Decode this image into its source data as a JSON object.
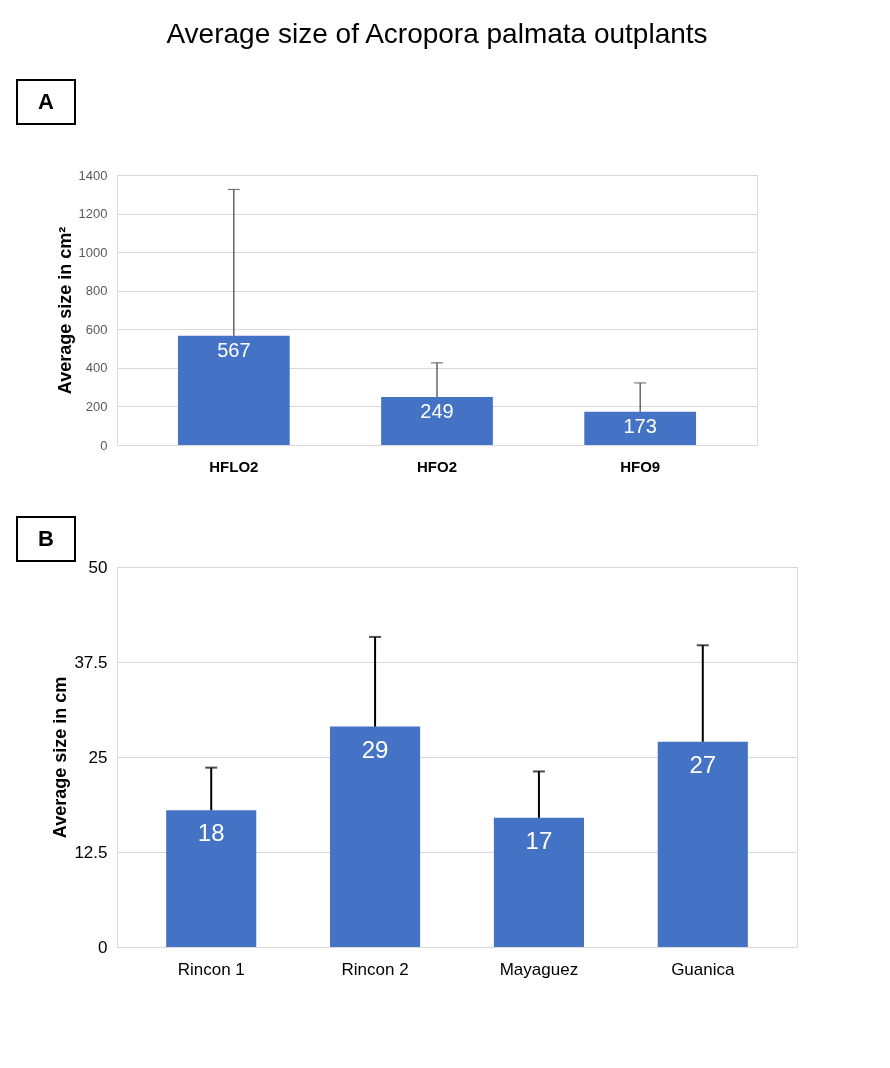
{
  "chart_data": [
    {
      "type": "bar",
      "title": "Average size of Acropora palmata outplants",
      "ylabel": "Average size in cm²",
      "categories": [
        "HFLO2",
        "HFO2",
        "HFO9"
      ],
      "values": [
        567,
        249,
        173
      ],
      "color": "#4472c4",
      "errors": [
        [
          567,
          1325
        ],
        [
          249,
          426
        ],
        [
          173,
          322
        ]
      ],
      "ylim": [
        0,
        1400
      ],
      "yticks": [
        0,
        200,
        400,
        600,
        800,
        1000,
        1200,
        1400
      ],
      "grid": "y",
      "data_labels": true,
      "annotations": [
        "A"
      ]
    },
    {
      "type": "bar",
      "ylabel": "Average size in cm",
      "categories": [
        "Rincon 1",
        "Rincon 2",
        "Mayaguez",
        "Guanica"
      ],
      "values": [
        18,
        29,
        17,
        27
      ],
      "color": "#4472c4",
      "errors": [
        [
          18,
          23.6
        ],
        [
          29,
          40.8
        ],
        [
          17,
          23.1
        ],
        [
          27,
          39.7
        ]
      ],
      "ylim": [
        0,
        50
      ],
      "yticks": [
        0,
        12.5,
        25,
        37.5,
        50
      ],
      "grid": "y",
      "data_labels": true,
      "annotations": [
        "B"
      ]
    }
  ]
}
